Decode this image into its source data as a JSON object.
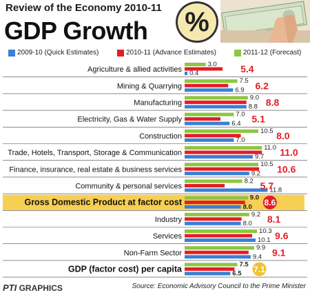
{
  "header": {
    "kicker": "Review of the Economy 2010-11",
    "title": "GDP Growth",
    "percent_symbol": "%"
  },
  "colors": {
    "series_2009": "#3a7fd5",
    "series_2010": "#e41d25",
    "series_2011": "#8dc63f",
    "highlight_band": "#f7cf52",
    "separator": "#444444"
  },
  "chart_data": {
    "type": "bar",
    "orientation": "horizontal",
    "categories": [
      "Agriculture & allied activities",
      "Mining & Quarrying",
      "Manufacturing",
      "Electricity, Gas & Water Supply",
      "Construction",
      "Trade, Hotels, Transport, Storage & Communication",
      "Finance, insurance, real estate & business services",
      "Community & personal services",
      "Gross Domestic Product at factor cost",
      "Industry",
      "Services",
      "Non-Farm Sector",
      "GDP (factor cost) per capita"
    ],
    "series": [
      {
        "name": "2009-10 (Quick Estimates)",
        "values": [
          0.4,
          6.9,
          8.8,
          6.4,
          7.0,
          9.7,
          9.2,
          11.8,
          8.0,
          8.0,
          10.1,
          9.4,
          6.5
        ]
      },
      {
        "name": "2010-11 (Advance Estimates)",
        "values": [
          5.4,
          6.2,
          8.8,
          5.1,
          8.0,
          11.0,
          10.6,
          5.7,
          8.6,
          8.1,
          9.6,
          9.1,
          7.1
        ]
      },
      {
        "name": "2011-12 (Forecast)",
        "values": [
          3.0,
          7.5,
          9.0,
          7.0,
          10.5,
          11.0,
          10.5,
          8.2,
          9.0,
          9.2,
          10.3,
          9.9,
          7.5
        ]
      }
    ],
    "highlighted_categories": [
      "Gross Domestic Product at factor cost",
      "GDP (factor cost) per capita"
    ],
    "legend_position": "top",
    "grid": false
  },
  "footer": {
    "logo_main": "PTI",
    "logo_sub": "GRAPHICS",
    "source": "Source: Economic Advisory Council to the Prime Minister"
  }
}
